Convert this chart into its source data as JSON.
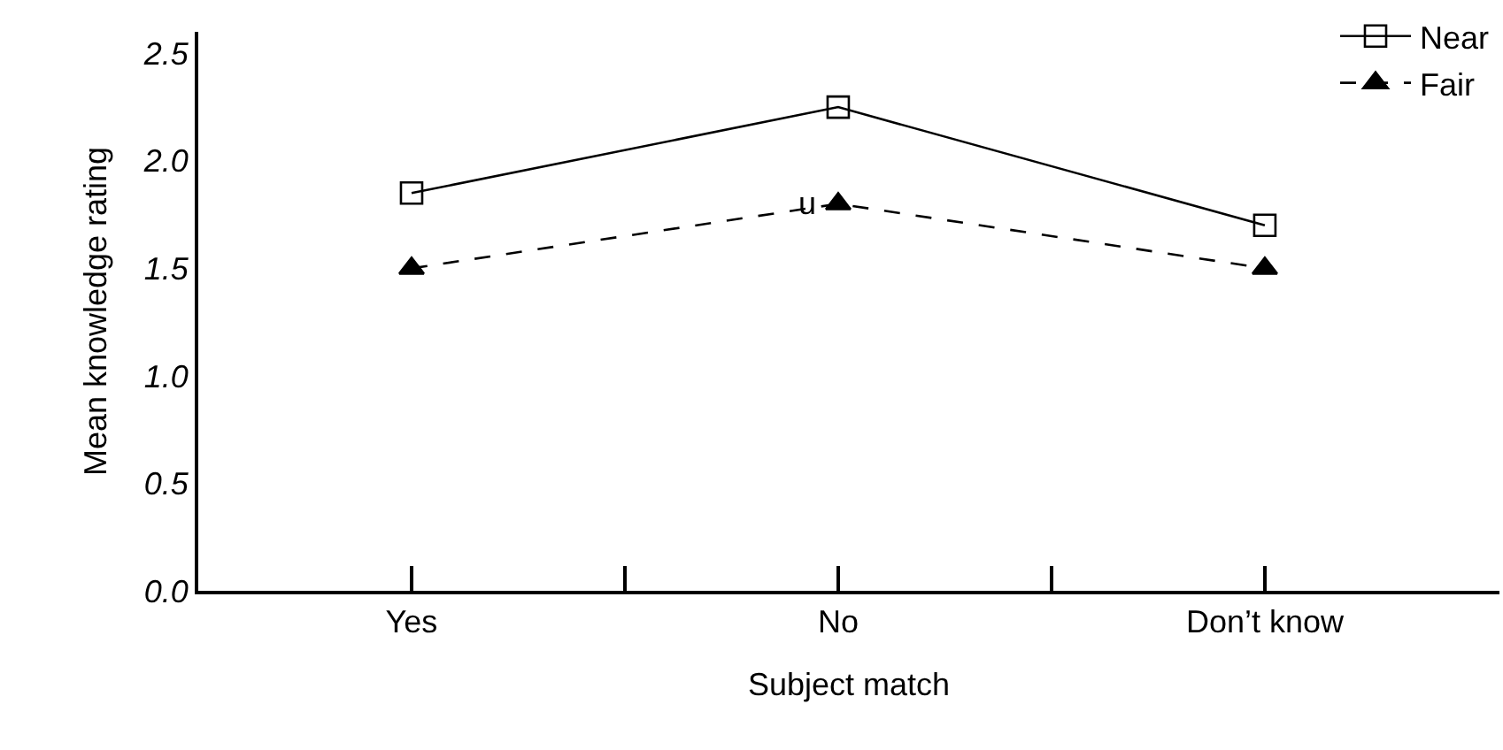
{
  "chart_data": {
    "type": "line",
    "xlabel": "Subject match",
    "ylabel": "Mean knowledge rating",
    "categories": [
      "Yes",
      "No",
      "Don’t know"
    ],
    "series": [
      {
        "name": "Near",
        "color": "#000000",
        "values": [
          1.85,
          2.25,
          1.7
        ],
        "marker": "square",
        "line_style": "solid"
      },
      {
        "name": "Fair",
        "color": "#000000",
        "values": [
          1.5,
          1.8,
          1.5
        ],
        "marker": "triangle",
        "line_style": "dashed"
      }
    ],
    "ylim": [
      0,
      2.6
    ],
    "yticks": [
      {
        "value": 0,
        "label": "0.0"
      },
      {
        "value": 0.5,
        "label": "0.5"
      },
      {
        "value": 1,
        "label": "1.0"
      },
      {
        "value": 1.5,
        "label": "1.5"
      },
      {
        "value": 2,
        "label": "2.0"
      },
      {
        "value": 2.5,
        "label": "2.5"
      }
    ],
    "annotations": [
      {
        "text": "u",
        "x": "No",
        "y": 1.8
      }
    ],
    "legend": "top right"
  }
}
